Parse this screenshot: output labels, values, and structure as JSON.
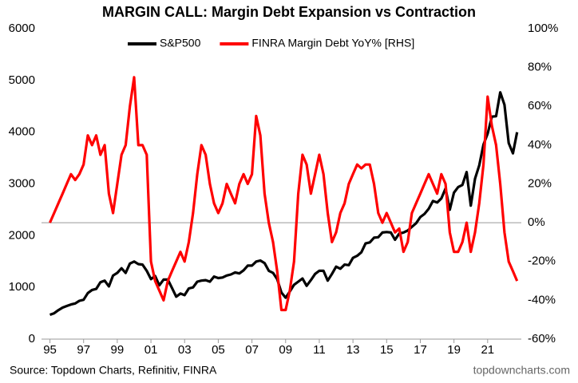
{
  "chart_data": {
    "type": "line",
    "title": "MARGIN CALL: Margin Debt Expansion vs Contraction",
    "source": "Source: Topdown Charts, Refinitiv, FINRA",
    "watermark": "topdowncharts.com",
    "x": [
      1995,
      1995.25,
      1995.5,
      1995.75,
      1996,
      1996.25,
      1996.5,
      1996.75,
      1997,
      1997.25,
      1997.5,
      1997.75,
      1998,
      1998.25,
      1998.5,
      1998.75,
      1999,
      1999.25,
      1999.5,
      1999.75,
      2000,
      2000.25,
      2000.5,
      2000.75,
      2001,
      2001.25,
      2001.5,
      2001.75,
      2002,
      2002.25,
      2002.5,
      2002.75,
      2003,
      2003.25,
      2003.5,
      2003.75,
      2004,
      2004.25,
      2004.5,
      2004.75,
      2005,
      2005.25,
      2005.5,
      2005.75,
      2006,
      2006.25,
      2006.5,
      2006.75,
      2007,
      2007.25,
      2007.5,
      2007.75,
      2008,
      2008.25,
      2008.5,
      2008.75,
      2009,
      2009.25,
      2009.5,
      2009.75,
      2010,
      2010.25,
      2010.5,
      2010.75,
      2011,
      2011.25,
      2011.5,
      2011.75,
      2012,
      2012.25,
      2012.5,
      2012.75,
      2013,
      2013.25,
      2013.5,
      2013.75,
      2014,
      2014.25,
      2014.5,
      2014.75,
      2015,
      2015.25,
      2015.5,
      2015.75,
      2016,
      2016.25,
      2016.5,
      2016.75,
      2017,
      2017.25,
      2017.5,
      2017.75,
      2018,
      2018.25,
      2018.5,
      2018.75,
      2019,
      2019.25,
      2019.5,
      2019.75,
      2020,
      2020.25,
      2020.5,
      2020.75,
      2021,
      2021.25,
      2021.5,
      2021.75,
      2022,
      2022.25,
      2022.5,
      2022.75
    ],
    "series": [
      {
        "name": "S&P500",
        "color": "#000000",
        "axis": "y",
        "values": [
          470,
          500,
          560,
          610,
          640,
          670,
          690,
          740,
          760,
          890,
          950,
          970,
          1100,
          1130,
          1020,
          1230,
          1280,
          1370,
          1280,
          1460,
          1500,
          1450,
          1440,
          1320,
          1160,
          1220,
          1040,
          1150,
          1150,
          990,
          820,
          880,
          850,
          980,
          1000,
          1110,
          1130,
          1140,
          1110,
          1210,
          1180,
          1190,
          1230,
          1250,
          1290,
          1270,
          1330,
          1420,
          1420,
          1500,
          1520,
          1470,
          1320,
          1280,
          1160,
          900,
          800,
          920,
          1050,
          1110,
          1170,
          1030,
          1140,
          1260,
          1320,
          1320,
          1130,
          1260,
          1400,
          1360,
          1440,
          1430,
          1570,
          1610,
          1680,
          1850,
          1870,
          1960,
          1970,
          2060,
          2070,
          2060,
          1920,
          2040,
          2060,
          2100,
          2170,
          2240,
          2360,
          2420,
          2520,
          2670,
          2640,
          2720,
          2910,
          2500,
          2830,
          2940,
          2980,
          3230,
          2580,
          3100,
          3360,
          3760,
          3970,
          4300,
          4310,
          4770,
          4530,
          3790,
          3590,
          4000
        ]
      },
      {
        "name": "FINRA Margin Debt YoY% [RHS]",
        "color": "#ff0000",
        "axis": "y2",
        "values": [
          0,
          5,
          10,
          15,
          20,
          25,
          22,
          25,
          30,
          45,
          40,
          45,
          35,
          40,
          15,
          5,
          20,
          35,
          40,
          60,
          75,
          40,
          40,
          35,
          -20,
          -30,
          -35,
          -40,
          -30,
          -25,
          -20,
          -15,
          -20,
          -10,
          5,
          25,
          40,
          35,
          20,
          10,
          5,
          10,
          20,
          15,
          10,
          20,
          25,
          20,
          25,
          55,
          45,
          15,
          0,
          -10,
          -25,
          -45,
          -45,
          -35,
          -20,
          15,
          35,
          30,
          15,
          25,
          35,
          25,
          5,
          -10,
          -5,
          5,
          10,
          20,
          25,
          30,
          28,
          30,
          30,
          20,
          5,
          0,
          5,
          0,
          -5,
          -3,
          -15,
          -10,
          5,
          10,
          15,
          20,
          25,
          20,
          15,
          25,
          20,
          -5,
          -15,
          -15,
          -10,
          0,
          -15,
          -5,
          10,
          30,
          65,
          50,
          40,
          20,
          -5,
          -20,
          -25,
          -30
        ]
      }
    ],
    "xlim": [
      1994.5,
      2023
    ],
    "xticks": [
      {
        "value": 1995,
        "label": "95"
      },
      {
        "value": 1997,
        "label": "97"
      },
      {
        "value": 1999,
        "label": "99"
      },
      {
        "value": 2001,
        "label": "01"
      },
      {
        "value": 2003,
        "label": "03"
      },
      {
        "value": 2005,
        "label": "05"
      },
      {
        "value": 2007,
        "label": "07"
      },
      {
        "value": 2009,
        "label": "09"
      },
      {
        "value": 2011,
        "label": "11"
      },
      {
        "value": 2013,
        "label": "13"
      },
      {
        "value": 2015,
        "label": "15"
      },
      {
        "value": 2017,
        "label": "17"
      },
      {
        "value": 2019,
        "label": "19"
      },
      {
        "value": 2021,
        "label": "21"
      }
    ],
    "ylim": [
      0,
      6000
    ],
    "yticks": [
      0,
      1000,
      2000,
      3000,
      4000,
      5000,
      6000
    ],
    "y2lim": [
      -60,
      100
    ],
    "y2ticks": [
      {
        "value": -60,
        "label": "-60%"
      },
      {
        "value": -40,
        "label": "-40%"
      },
      {
        "value": -20,
        "label": "-20%"
      },
      {
        "value": 0,
        "label": "0%"
      },
      {
        "value": 20,
        "label": "20%"
      },
      {
        "value": 40,
        "label": "40%"
      },
      {
        "value": 60,
        "label": "60%"
      },
      {
        "value": 80,
        "label": "80%"
      },
      {
        "value": 100,
        "label": "100%"
      }
    ],
    "legend": "top"
  }
}
